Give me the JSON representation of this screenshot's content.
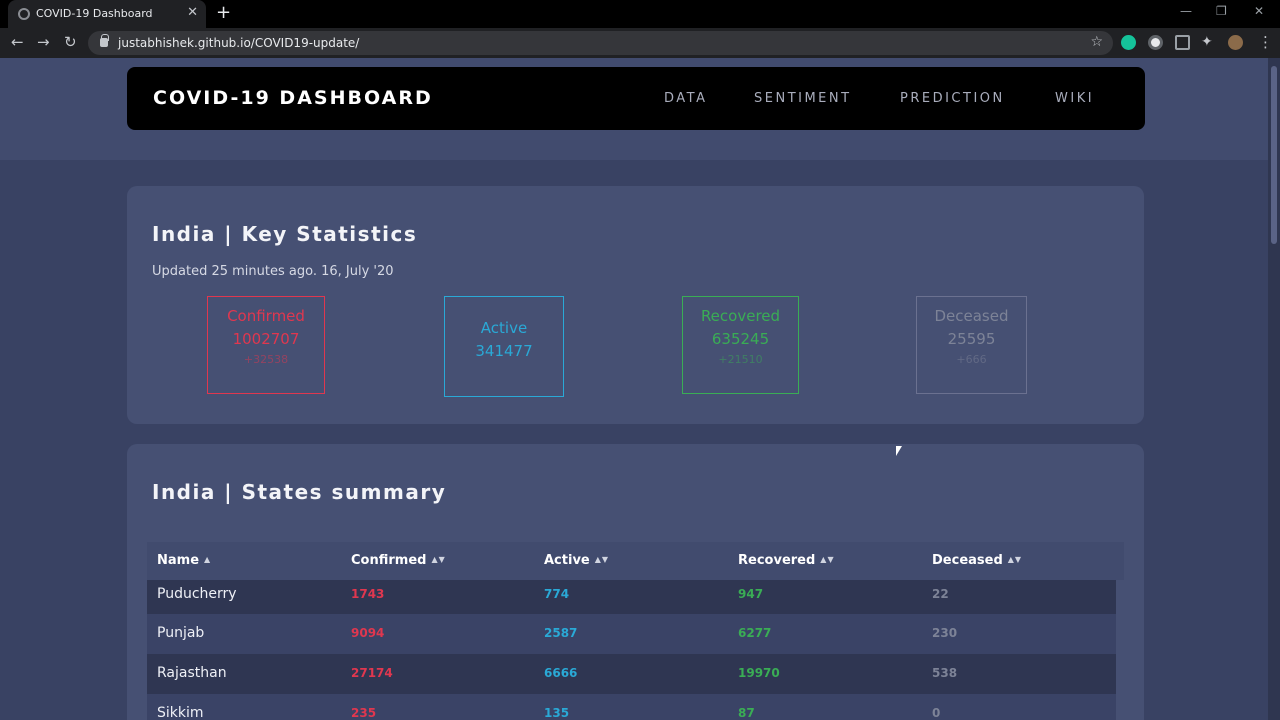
{
  "browser": {
    "tab_title": "COVID-19 Dashboard",
    "url": "justabhishek.github.io/COVID19-update/"
  },
  "navbar": {
    "brand": "COVID-19 DASHBOARD",
    "links": [
      "DATA",
      "SENTIMENT",
      "PREDICTION",
      "WIKI"
    ]
  },
  "stats": {
    "title": "India | Key Statistics",
    "updated": "Updated 25 minutes ago. 16, July '20",
    "confirmed": {
      "label": "Confirmed",
      "value": "1002707",
      "delta": "+32538",
      "color": "#e0374f"
    },
    "active": {
      "label": "Active",
      "value": "341477",
      "color": "#2aa9d6"
    },
    "recovered": {
      "label": "Recovered",
      "value": "635245",
      "delta": "+21510",
      "color": "#3aad55"
    },
    "deceased": {
      "label": "Deceased",
      "value": "25595",
      "delta": "+666",
      "color": "#7d8397"
    }
  },
  "states": {
    "title": "India | States summary",
    "columns": [
      "Name",
      "Confirmed",
      "Active",
      "Recovered",
      "Deceased"
    ],
    "rows": [
      {
        "name": "Puducherry",
        "confirmed": "1743",
        "active": "774",
        "recovered": "947",
        "deceased": "22"
      },
      {
        "name": "Punjab",
        "confirmed": "9094",
        "active": "2587",
        "recovered": "6277",
        "deceased": "230"
      },
      {
        "name": "Rajasthan",
        "confirmed": "27174",
        "active": "6666",
        "recovered": "19970",
        "deceased": "538"
      },
      {
        "name": "Sikkim",
        "confirmed": "235",
        "active": "135",
        "recovered": "87",
        "deceased": "0"
      }
    ]
  }
}
